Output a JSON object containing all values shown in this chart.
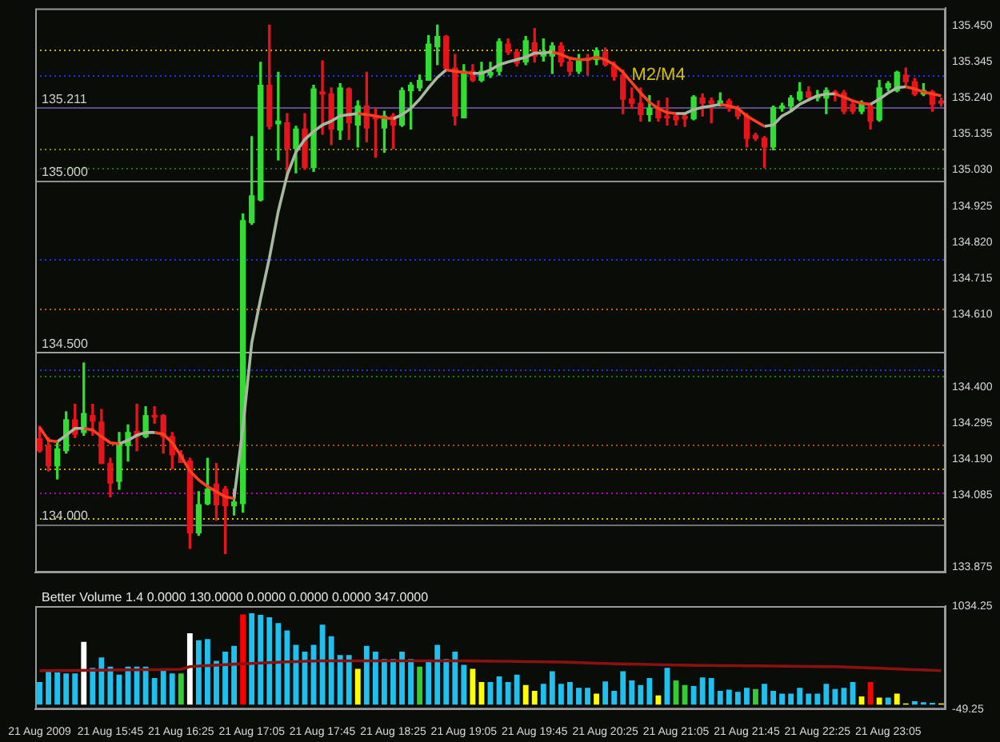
{
  "chart_data": [
    {
      "type": "candlestick",
      "tick_labels": "y",
      "categories": [
        null,
        null,
        null,
        null,
        null,
        null,
        null,
        null,
        null,
        null,
        null,
        null,
        null,
        null,
        null,
        null,
        null,
        null,
        null,
        null,
        null,
        null,
        null,
        null,
        null,
        null,
        null,
        null,
        null,
        null,
        null,
        null,
        null,
        null,
        null,
        null,
        null,
        null,
        null,
        null,
        null,
        null,
        null,
        null,
        null,
        null,
        null,
        null,
        null,
        null,
        null,
        null,
        null,
        null,
        null,
        null,
        null,
        null,
        null,
        null,
        null,
        null,
        null,
        null,
        null,
        null,
        null,
        null,
        null,
        null,
        null,
        null,
        null,
        null,
        null,
        null,
        null,
        null,
        null,
        null,
        null,
        null,
        null,
        null,
        null,
        null,
        null,
        null,
        null,
        null,
        null,
        null,
        null,
        null,
        null,
        null,
        null,
        null,
        null,
        null,
        null,
        null,
        null
      ],
      "ohlc": [
        [
          134.249,
          134.285,
          134.21,
          134.214
        ],
        [
          134.229,
          134.252,
          134.155,
          134.17
        ],
        [
          134.17,
          134.237,
          134.132,
          134.219
        ],
        [
          134.214,
          134.327,
          134.207,
          134.304
        ],
        [
          134.304,
          134.349,
          134.252,
          134.262
        ],
        [
          134.267,
          134.469,
          134.259,
          134.322
        ],
        [
          134.316,
          134.349,
          134.259,
          134.3
        ],
        [
          134.297,
          134.334,
          134.177,
          134.177
        ],
        [
          134.177,
          134.192,
          134.08,
          134.12
        ],
        [
          134.125,
          134.267,
          134.102,
          134.234
        ],
        [
          134.229,
          134.289,
          134.184,
          134.267
        ],
        [
          134.27,
          134.349,
          134.214,
          134.255
        ],
        [
          134.255,
          134.342,
          134.252,
          134.316
        ],
        [
          134.316,
          134.342,
          134.294,
          134.312
        ],
        [
          134.316,
          134.319,
          134.207,
          134.255
        ],
        [
          134.255,
          134.267,
          134.162,
          134.202
        ],
        [
          134.202,
          134.214,
          134.18,
          134.18
        ],
        [
          134.184,
          134.192,
          133.93,
          133.975
        ],
        [
          133.975,
          134.095,
          133.968,
          134.057
        ],
        [
          134.06,
          134.192,
          134.057,
          134.102
        ],
        [
          134.117,
          134.177,
          134.012,
          134.057
        ],
        [
          134.102,
          134.11,
          133.915,
          134.054
        ],
        [
          134.054,
          134.102,
          134.027,
          134.065
        ],
        [
          134.06,
          134.902,
          134.035,
          134.883
        ],
        [
          134.877,
          135.127,
          134.872,
          134.955
        ],
        [
          134.943,
          135.343,
          134.94,
          135.276
        ],
        [
          135.276,
          135.451,
          135.149,
          135.157
        ],
        [
          135.164,
          135.314,
          135.059,
          135.172
        ],
        [
          135.167,
          135.194,
          135.007,
          135.092
        ],
        [
          135.092,
          135.157,
          135.022,
          135.149
        ],
        [
          135.149,
          135.194,
          135.032,
          135.037
        ],
        [
          135.037,
          135.276,
          135.026,
          135.266
        ],
        [
          135.257,
          135.347,
          135.134,
          135.251
        ],
        [
          135.251,
          135.269,
          135.104,
          135.149
        ],
        [
          135.146,
          135.281,
          135.119,
          135.269
        ],
        [
          135.266,
          135.269,
          135.119,
          135.167
        ],
        [
          135.161,
          135.231,
          135.097,
          135.216
        ],
        [
          135.216,
          135.314,
          135.112,
          135.152
        ],
        [
          135.182,
          135.209,
          135.067,
          135.179
        ],
        [
          135.152,
          135.201,
          135.082,
          135.187
        ],
        [
          135.187,
          135.194,
          135.092,
          135.161
        ],
        [
          135.161,
          135.269,
          135.157,
          135.261
        ],
        [
          135.261,
          135.284,
          135.149,
          135.276
        ],
        [
          135.269,
          135.306,
          135.261,
          135.291
        ],
        [
          135.291,
          135.421,
          135.291,
          135.396
        ],
        [
          135.388,
          135.451,
          135.336,
          135.418
        ],
        [
          135.418,
          135.421,
          135.321,
          135.326
        ],
        [
          135.326,
          135.366,
          135.161,
          135.187
        ],
        [
          135.182,
          135.336,
          135.182,
          135.317
        ],
        [
          135.317,
          135.336,
          135.287,
          135.291
        ],
        [
          135.291,
          135.343,
          135.287,
          135.317
        ],
        [
          135.306,
          135.343,
          135.299,
          135.314
        ],
        [
          135.317,
          135.411,
          135.306,
          135.403
        ],
        [
          135.396,
          135.411,
          135.366,
          135.373
        ],
        [
          135.373,
          135.381,
          135.332,
          135.341
        ],
        [
          135.344,
          135.418,
          135.336,
          135.406
        ],
        [
          135.4,
          135.441,
          135.344,
          135.361
        ],
        [
          135.361,
          135.411,
          135.347,
          135.373
        ],
        [
          135.361,
          135.4,
          135.311,
          135.391
        ],
        [
          135.391,
          135.4,
          135.332,
          135.344
        ],
        [
          135.344,
          135.358,
          135.306,
          135.317
        ],
        [
          135.317,
          135.366,
          135.311,
          135.351
        ],
        [
          135.351,
          135.366,
          135.306,
          135.351
        ],
        [
          135.351,
          135.385,
          135.336,
          135.376
        ],
        [
          135.373,
          135.385,
          135.332,
          135.336
        ],
        [
          135.332,
          135.344,
          135.291,
          135.302
        ],
        [
          135.306,
          135.321,
          135.194,
          135.236
        ],
        [
          135.236,
          135.269,
          135.209,
          135.224
        ],
        [
          135.224,
          135.269,
          135.172,
          135.191
        ],
        [
          135.191,
          135.246,
          135.172,
          135.209
        ],
        [
          135.209,
          135.231,
          135.172,
          135.182
        ],
        [
          135.187,
          135.239,
          135.161,
          135.182
        ],
        [
          135.187,
          135.194,
          135.161,
          135.176
        ],
        [
          135.187,
          135.191,
          135.157,
          135.179
        ],
        [
          135.179,
          135.246,
          135.176,
          135.242
        ],
        [
          135.239,
          135.251,
          135.187,
          135.224
        ],
        [
          135.231,
          135.239,
          135.167,
          135.224
        ],
        [
          135.224,
          135.254,
          135.216,
          135.231
        ],
        [
          135.231,
          135.236,
          135.201,
          135.209
        ],
        [
          135.209,
          135.216,
          135.179,
          135.187
        ],
        [
          135.187,
          135.194,
          135.097,
          135.122
        ],
        [
          135.131,
          135.137,
          135.116,
          135.122
        ],
        [
          135.122,
          135.127,
          135.037,
          135.097
        ],
        [
          135.097,
          135.216,
          135.089,
          135.212
        ],
        [
          135.209,
          135.224,
          135.201,
          135.216
        ],
        [
          135.216,
          135.246,
          135.201,
          135.239
        ],
        [
          135.236,
          135.284,
          135.231,
          135.257
        ],
        [
          135.257,
          135.272,
          135.231,
          135.242
        ],
        [
          135.239,
          135.261,
          135.231,
          135.246
        ],
        [
          135.239,
          135.269,
          135.194,
          135.261
        ],
        [
          135.257,
          135.261,
          135.231,
          135.251
        ],
        [
          135.254,
          135.261,
          135.194,
          135.201
        ],
        [
          135.221,
          135.231,
          135.194,
          135.201
        ],
        [
          135.201,
          135.231,
          135.194,
          135.221
        ],
        [
          135.216,
          135.224,
          135.149,
          135.172
        ],
        [
          135.176,
          135.291,
          135.172,
          135.269
        ],
        [
          135.269,
          135.287,
          135.261,
          135.281
        ],
        [
          135.261,
          135.317,
          135.257,
          135.314
        ],
        [
          135.306,
          135.326,
          135.276,
          135.287
        ],
        [
          135.287,
          135.296,
          135.246,
          135.251
        ],
        [
          135.251,
          135.281,
          135.246,
          135.261
        ],
        [
          135.257,
          135.261,
          135.201,
          135.221
        ],
        [
          135.231,
          135.239,
          135.216,
          135.224
        ]
      ],
      "colors": [
        "#e8141c",
        "#e8141c",
        "#32dc32",
        "#32dc32",
        "#e8141c",
        "#32dc32",
        "#e8141c",
        "#e8141c",
        "#e8141c",
        "#32dc32",
        "#32dc32",
        "#e8141c",
        "#32dc32",
        "#e8141c",
        "#e8141c",
        "#e8141c",
        "#e8141c",
        "#e8141c",
        "#32dc32",
        "#32dc32",
        "#e8141c",
        "#e8141c",
        "#32dc32",
        "#32dc32",
        "#32dc32",
        "#32dc32",
        "#e8141c",
        "#32dc32",
        "#e8141c",
        "#32dc32",
        "#e8141c",
        "#32dc32",
        "#e8141c",
        "#e8141c",
        "#32dc32",
        "#e8141c",
        "#32dc32",
        "#e8141c",
        "#e8141c",
        "#32dc32",
        "#e8141c",
        "#32dc32",
        "#32dc32",
        "#32dc32",
        "#32dc32",
        "#32dc32",
        "#e8141c",
        "#e8141c",
        "#32dc32",
        "#e8141c",
        "#32dc32",
        "#32dc32",
        "#32dc32",
        "#e8141c",
        "#e8141c",
        "#32dc32",
        "#e8141c",
        "#32dc32",
        "#32dc32",
        "#e8141c",
        "#e8141c",
        "#32dc32",
        "#e8141c",
        "#32dc32",
        "#e8141c",
        "#e8141c",
        "#e8141c",
        "#e8141c",
        "#e8141c",
        "#32dc32",
        "#e8141c",
        "#e8141c",
        "#e8141c",
        "#e8141c",
        "#32dc32",
        "#e8141c",
        "#e8141c",
        "#32dc32",
        "#e8141c",
        "#e8141c",
        "#e8141c",
        "#e8141c",
        "#e8141c",
        "#32dc32",
        "#32dc32",
        "#32dc32",
        "#32dc32",
        "#e8141c",
        "#32dc32",
        "#32dc32",
        "#e8141c",
        "#e8141c",
        "#e8141c",
        "#32dc32",
        "#e8141c",
        "#32dc32",
        "#32dc32",
        "#32dc32",
        "#e8141c",
        "#e8141c",
        "#32dc32",
        "#e8141c",
        "#e8141c"
      ],
      "series": [
        {
          "type": "line",
          "color": "#ff4020",
          "values": [
            134.282,
            134.244,
            134.24,
            null,
            null,
            134.279,
            134.274,
            134.255,
            134.237,
            134.234,
            null,
            null,
            null,
            134.267,
            134.262,
            134.237,
            134.199,
            134.155,
            134.129,
            134.11,
            134.095,
            134.08,
            134.075,
            null,
            null,
            null,
            null,
            null,
            null,
            null,
            null,
            null,
            null,
            null,
            null,
            null,
            135.194,
            135.191,
            135.187,
            135.182,
            135.179,
            null,
            null,
            null,
            null,
            null,
            135.321,
            135.317,
            135.314,
            135.311,
            null,
            null,
            null,
            null,
            null,
            null,
            null,
            null,
            135.373,
            135.366,
            135.355,
            135.351,
            135.351,
            135.358,
            135.351,
            135.336,
            135.314,
            135.284,
            135.254,
            135.227,
            135.209,
            135.197,
            135.194,
            null,
            null,
            null,
            null,
            135.221,
            135.216,
            135.209,
            135.187,
            135.172,
            135.157,
            null,
            null,
            null,
            null,
            null,
            null,
            null,
            135.251,
            135.242,
            135.231,
            135.224,
            135.221,
            null,
            null,
            null,
            135.272,
            135.266,
            135.257,
            135.251,
            135.246
          ]
        },
        {
          "type": "line",
          "color": "#a8b8a0",
          "values": [
            null,
            null,
            134.24,
            134.259,
            134.279,
            134.279,
            null,
            null,
            null,
            134.234,
            134.244,
            134.259,
            134.267,
            134.267,
            null,
            null,
            null,
            null,
            null,
            null,
            null,
            null,
            134.075,
            134.282,
            134.528,
            134.656,
            134.775,
            134.91,
            135.015,
            135.082,
            135.119,
            135.142,
            135.161,
            135.172,
            135.187,
            135.191,
            135.194,
            null,
            null,
            null,
            135.179,
            135.191,
            135.209,
            135.236,
            135.269,
            135.299,
            135.321,
            null,
            null,
            135.311,
            135.311,
            135.321,
            135.336,
            135.344,
            135.351,
            135.358,
            135.37,
            135.37,
            135.373,
            null,
            null,
            null,
            null,
            null,
            null,
            null,
            null,
            null,
            null,
            null,
            null,
            null,
            135.194,
            135.194,
            135.206,
            135.212,
            135.216,
            135.221,
            null,
            null,
            null,
            null,
            135.157,
            135.161,
            135.187,
            135.201,
            135.221,
            135.234,
            135.246,
            135.251,
            135.251,
            null,
            null,
            null,
            135.221,
            135.236,
            135.254,
            135.269,
            135.272,
            null,
            null,
            null,
            null
          ]
        }
      ],
      "ylim": [
        133.86,
        135.5
      ],
      "yticks": [
        {
          "value": 135.45,
          "label": "135.450"
        },
        {
          "value": 135.345,
          "label": "135.345"
        },
        {
          "value": 135.24,
          "label": "135.240"
        },
        {
          "value": 135.135,
          "label": "135.135"
        },
        {
          "value": 135.03,
          "label": "135.030"
        },
        {
          "value": 134.925,
          "label": "134.925"
        },
        {
          "value": 134.82,
          "label": "134.820"
        },
        {
          "value": 134.715,
          "label": "134.715"
        },
        {
          "value": 134.61,
          "label": "134.610"
        },
        {
          "value": 134.4,
          "label": "134.400"
        },
        {
          "value": 134.295,
          "label": "134.295"
        },
        {
          "value": 134.19,
          "label": "134.190"
        },
        {
          "value": 134.085,
          "label": "134.085"
        },
        {
          "value": 133.875,
          "label": "133.875"
        }
      ],
      "ref_lines": [
        {
          "axis": "y",
          "value": 135.378,
          "color": "#c8b400",
          "line_style": "dotted"
        },
        {
          "axis": "y",
          "value": 135.306,
          "color": "#2030ff",
          "line_style": "dotted"
        },
        {
          "axis": "y",
          "value": 135.211,
          "label": "135.211",
          "color": "#5c4a8a"
        },
        {
          "axis": "y",
          "value": 135.091,
          "color": "#8a8a10",
          "line_style": "dotted"
        },
        {
          "axis": "y",
          "value": 135.037,
          "color": "#207020",
          "line_style": "dotted"
        },
        {
          "axis": "y",
          "value": 135.0,
          "label": "135.000",
          "color": "#909090"
        },
        {
          "axis": "y",
          "value": 134.773,
          "color": "#2030ff",
          "line_style": "dotted"
        },
        {
          "axis": "y",
          "value": 134.625,
          "color": "#c06020",
          "line_style": "dotted"
        },
        {
          "axis": "y",
          "value": 134.5,
          "label": "134.500",
          "color": "#a0a0a0"
        },
        {
          "axis": "y",
          "value": 134.45,
          "color": "#2030ff",
          "line_style": "dotted"
        },
        {
          "axis": "y",
          "value": 134.432,
          "color": "#108010",
          "line_style": "dotted"
        },
        {
          "axis": "y",
          "value": 134.234,
          "color": "#a05010",
          "line_style": "dotted"
        },
        {
          "axis": "y",
          "value": 134.162,
          "color": "#d0a000",
          "line_style": "dotted"
        },
        {
          "axis": "y",
          "value": 134.091,
          "color": "#c000c0",
          "line_style": "dotted"
        },
        {
          "axis": "y",
          "value": 134.019,
          "color": "#d0c000",
          "line_style": "dotted"
        },
        {
          "axis": "y",
          "value": 134.0,
          "label": "134.000",
          "color": "#707070"
        }
      ],
      "annotations": [
        "M2/M4"
      ]
    },
    {
      "type": "bar",
      "title": "Better Volume 1.4 0.0000 130.0000 0.0000 0.0000 0.0000 347.0000",
      "categories": [
        "21 Aug 2009",
        null,
        null,
        null,
        null,
        null,
        null,
        null,
        "21 Aug 15:45",
        null,
        null,
        null,
        null,
        null,
        null,
        null,
        "21 Aug 16:25",
        null,
        null,
        null,
        null,
        null,
        null,
        null,
        "21 Aug 17:05",
        null,
        null,
        null,
        null,
        null,
        null,
        null,
        "21 Aug 17:45",
        null,
        null,
        null,
        null,
        null,
        null,
        null,
        "21 Aug 18:25",
        null,
        null,
        null,
        null,
        null,
        null,
        null,
        "21 Aug 19:05",
        null,
        null,
        null,
        null,
        null,
        null,
        null,
        "21 Aug 19:45",
        null,
        null,
        null,
        null,
        null,
        null,
        null,
        "21 Aug 20:25",
        null,
        null,
        null,
        null,
        null,
        null,
        null,
        "21 Aug 21:05",
        null,
        null,
        null,
        null,
        null,
        null,
        null,
        "21 Aug 21:45",
        null,
        null,
        null,
        null,
        null,
        null,
        null,
        "21 Aug 22:25",
        null,
        null,
        null,
        null,
        null,
        null,
        null,
        "21 Aug 23:05",
        null,
        null,
        null,
        null,
        null,
        null
      ],
      "values": [
        237,
        351,
        339,
        327,
        327,
        658,
        387,
        496,
        399,
        315,
        399,
        399,
        399,
        279,
        357,
        327,
        327,
        749,
        676,
        688,
        460,
        556,
        616,
        947,
        959,
        941,
        917,
        857,
        779,
        628,
        556,
        628,
        839,
        718,
        520,
        520,
        375,
        616,
        556,
        478,
        478,
        556,
        478,
        399,
        447,
        628,
        478,
        556,
        417,
        375,
        237,
        237,
        297,
        237,
        315,
        207,
        146,
        219,
        351,
        219,
        237,
        177,
        177,
        116,
        243,
        146,
        351,
        255,
        207,
        279,
        98,
        387,
        255,
        207,
        195,
        285,
        279,
        146,
        158,
        134,
        177,
        165,
        219,
        146,
        116,
        116,
        177,
        116,
        116,
        219,
        165,
        177,
        237,
        86,
        237,
        74,
        74,
        116,
        13,
        37,
        25,
        20,
        13
      ],
      "colors": [
        "#1ec0f0",
        "#1ec0f0",
        "#1ec0f0",
        "#1ec0f0",
        "#1ec0f0",
        "#ffffff",
        "#1ec0f0",
        "#1ec0f0",
        "#1ec0f0",
        "#1ec0f0",
        "#1ec0f0",
        "#1ec0f0",
        "#1ec0f0",
        "#1ec0f0",
        "#1ec0f0",
        "#1ec0f0",
        "#32cd32",
        "#ffffff",
        "#1ec0f0",
        "#1ec0f0",
        "#1ec0f0",
        "#1ec0f0",
        "#1ec0f0",
        "#ff0000",
        "#1ec0f0",
        "#1ec0f0",
        "#1ec0f0",
        "#1ec0f0",
        "#1ec0f0",
        "#1ec0f0",
        "#1ec0f0",
        "#1ec0f0",
        "#1ec0f0",
        "#1ec0f0",
        "#1ec0f0",
        "#1ec0f0",
        "#ffff00",
        "#1ec0f0",
        "#1ec0f0",
        "#1ec0f0",
        "#1ec0f0",
        "#1ec0f0",
        "#1ec0f0",
        "#32cd32",
        "#1ec0f0",
        "#1ec0f0",
        "#1ec0f0",
        "#1ec0f0",
        "#1ec0f0",
        "#ffff00",
        "#ffff00",
        "#1ec0f0",
        "#1ec0f0",
        "#1ec0f0",
        "#1ec0f0",
        "#ffff00",
        "#ffff00",
        "#1ec0f0",
        "#1ec0f0",
        "#1ec0f0",
        "#1ec0f0",
        "#1ec0f0",
        "#1ec0f0",
        "#ffff00",
        "#1ec0f0",
        "#1ec0f0",
        "#1ec0f0",
        "#1ec0f0",
        "#1ec0f0",
        "#1ec0f0",
        "#ffff00",
        "#1ec0f0",
        "#32cd32",
        "#32cd32",
        "#1ec0f0",
        "#1ec0f0",
        "#1ec0f0",
        "#1ec0f0",
        "#1ec0f0",
        "#1ec0f0",
        "#1ec0f0",
        "#32cd32",
        "#1ec0f0",
        "#1ec0f0",
        "#1ec0f0",
        "#1ec0f0",
        "#1ec0f0",
        "#1ec0f0",
        "#1ec0f0",
        "#1ec0f0",
        "#1ec0f0",
        "#1ec0f0",
        "#1ec0f0",
        "#ffff00",
        "#ff0000",
        "#ffff00",
        "#1ec0f0",
        "#ffff00",
        "#ffff00",
        "#1ec0f0",
        "#1ec0f0",
        "#1ec0f0",
        "#ffff00"
      ],
      "series": [
        {
          "type": "line",
          "color": "#8b1010",
          "values": [
            357,
            357,
            358,
            358,
            359,
            360,
            361,
            362,
            363,
            364,
            365,
            366,
            367,
            368,
            369,
            370,
            372,
            399,
            405,
            410,
            415,
            420,
            425,
            429,
            433,
            437,
            441,
            445,
            449,
            452,
            455,
            458,
            460,
            460,
            460,
            460,
            460,
            460,
            460,
            460,
            460,
            460,
            460,
            460,
            460,
            460,
            460,
            460,
            460,
            459,
            458,
            457,
            456,
            455,
            453,
            452,
            451,
            449,
            448,
            447,
            444,
            441,
            438,
            435,
            432,
            429,
            427,
            425,
            424,
            422,
            420,
            418,
            416,
            415,
            413,
            412,
            411,
            410,
            410,
            409,
            408,
            407,
            406,
            405,
            404,
            403,
            402,
            401,
            400,
            400,
            399,
            396,
            392,
            389,
            385,
            382,
            378,
            375,
            371,
            368,
            364,
            361,
            357
          ]
        }
      ],
      "ylim": [
        -49.25,
        1034.25
      ],
      "yticks": [
        1034.25,
        -49.25
      ]
    }
  ]
}
